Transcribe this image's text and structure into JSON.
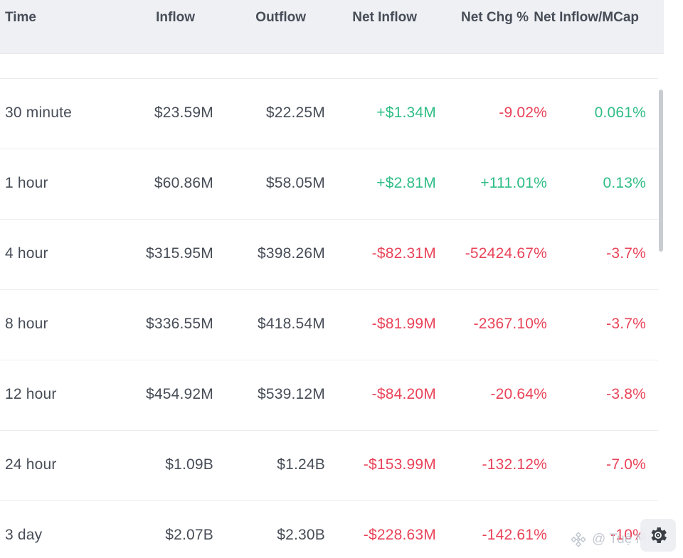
{
  "table": {
    "headers": {
      "time": "Time",
      "inflow": "Inflow",
      "outflow": "Outflow",
      "net_inflow": "Net Inflow",
      "net_chg": "Net Chg %",
      "net_inflow_mcap": "Net Inflow/MCap"
    },
    "rows": [
      {
        "time": "30 minute",
        "inflow": "$23.59M",
        "outflow": "$22.25M",
        "net_inflow": "+$1.34M",
        "net_inflow_sign": "pos",
        "net_chg": "-9.02%",
        "net_chg_sign": "neg",
        "mcap": "0.061%",
        "mcap_sign": "pos"
      },
      {
        "time": "1 hour",
        "inflow": "$60.86M",
        "outflow": "$58.05M",
        "net_inflow": "+$2.81M",
        "net_inflow_sign": "pos",
        "net_chg": "+111.01%",
        "net_chg_sign": "pos",
        "mcap": "0.13%",
        "mcap_sign": "pos"
      },
      {
        "time": "4 hour",
        "inflow": "$315.95M",
        "outflow": "$398.26M",
        "net_inflow": "-$82.31M",
        "net_inflow_sign": "neg",
        "net_chg": "-52424.67%",
        "net_chg_sign": "neg",
        "mcap": "-3.7%",
        "mcap_sign": "neg"
      },
      {
        "time": "8 hour",
        "inflow": "$336.55M",
        "outflow": "$418.54M",
        "net_inflow": "-$81.99M",
        "net_inflow_sign": "neg",
        "net_chg": "-2367.10%",
        "net_chg_sign": "neg",
        "mcap": "-3.7%",
        "mcap_sign": "neg"
      },
      {
        "time": "12 hour",
        "inflow": "$454.92M",
        "outflow": "$539.12M",
        "net_inflow": "-$84.20M",
        "net_inflow_sign": "neg",
        "net_chg": "-20.64%",
        "net_chg_sign": "neg",
        "mcap": "-3.8%",
        "mcap_sign": "neg"
      },
      {
        "time": "24 hour",
        "inflow": "$1.09B",
        "outflow": "$1.24B",
        "net_inflow": "-$153.99M",
        "net_inflow_sign": "neg",
        "net_chg": "-132.12%",
        "net_chg_sign": "neg",
        "mcap": "-7.0%",
        "mcap_sign": "neg"
      },
      {
        "time": "3 day",
        "inflow": "$2.07B",
        "outflow": "$2.30B",
        "net_inflow": "-$228.63M",
        "net_inflow_sign": "neg",
        "net_chg": "-142.61%",
        "net_chg_sign": "neg",
        "mcap": "-10%",
        "mcap_sign": "neg"
      }
    ]
  },
  "watermark": {
    "text": "@ Tuệ Mẫn",
    "icon": "binance-logo-icon"
  },
  "settings_button": {
    "icon": "gear-icon"
  },
  "colors": {
    "positive": "#2ebd85",
    "negative": "#e94359",
    "text": "#474d57",
    "header_bg": "#eef0f4"
  }
}
